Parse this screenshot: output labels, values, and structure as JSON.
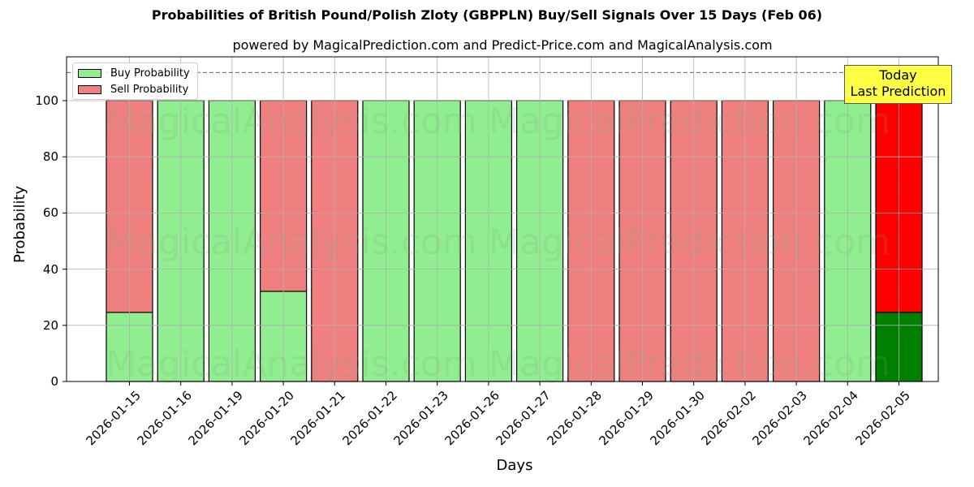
{
  "chart_data": {
    "type": "bar",
    "stacked": true,
    "title": "Probabilities of British Pound/Polish Zloty (GBPPLN) Buy/Sell Signals Over 15 Days (Feb 06)",
    "subtitle": "powered by MagicalPrediction.com and Predict-Price.com and MagicalAnalysis.com",
    "xlabel": "Days",
    "ylabel": "Probability",
    "ylim": [
      0,
      115
    ],
    "yticks": [
      0,
      20,
      40,
      60,
      80,
      100
    ],
    "grid": true,
    "legend_position": "upper left",
    "reference_line": {
      "y": 110,
      "style": "dashed",
      "color": "#808080"
    },
    "categories": [
      "2026-01-15",
      "2026-01-16",
      "2026-01-19",
      "2026-01-20",
      "2026-01-21",
      "2026-01-22",
      "2026-01-23",
      "2026-01-26",
      "2026-01-27",
      "2026-01-28",
      "2026-01-29",
      "2026-01-30",
      "2026-02-02",
      "2026-02-03",
      "2026-02-04",
      "2026-02-05"
    ],
    "series": [
      {
        "name": "Buy Probability",
        "color": "#90ee90",
        "values": [
          24.6,
          100,
          100,
          32.1,
          0,
          100,
          100,
          100,
          100,
          0,
          0,
          0,
          0,
          0,
          100,
          24.6
        ]
      },
      {
        "name": "Sell Probability",
        "color": "#f08080",
        "values": [
          75.4,
          0,
          0,
          67.9,
          100,
          0,
          0,
          0,
          0,
          100,
          100,
          100,
          100,
          100,
          0,
          75.4
        ]
      }
    ],
    "highlight": {
      "index": 15,
      "buy_color": "#008000",
      "sell_color": "#ff0000"
    },
    "annotation": {
      "text_line1": "Today",
      "text_line2": "Last Prediction",
      "background": "#ffff44"
    },
    "watermarks": [
      "MagicalAnalysis.com",
      "MagicalPrediction.com"
    ]
  }
}
